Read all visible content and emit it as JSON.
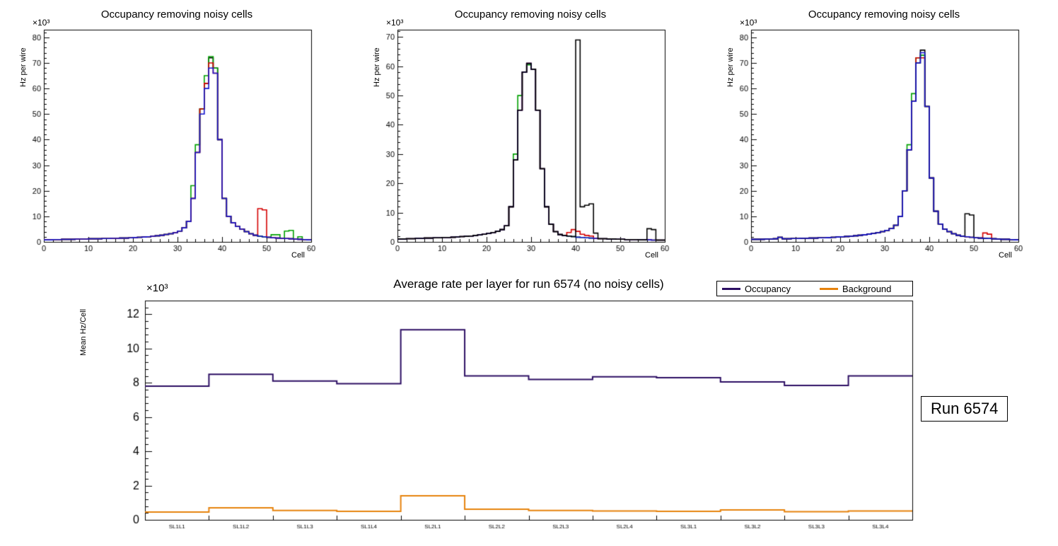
{
  "chart_data": [
    {
      "type": "histogram-overlay",
      "title": "Occupancy removing noisy cells",
      "xlabel": "Cell",
      "ylabel": "Hz per wire",
      "y_exponent": "×10³",
      "xlim": [
        0,
        60
      ],
      "ylim": [
        0,
        83
      ],
      "xtick_major": 10,
      "xtick_minor": 2,
      "ytick_major": 10,
      "ytick_minor": 2,
      "bins": 60,
      "base": [
        0.8,
        0.8,
        0.9,
        0.9,
        1.0,
        1.0,
        1.0,
        1.1,
        1.1,
        1.1,
        1.2,
        1.2,
        1.2,
        1.3,
        1.3,
        1.4,
        1.4,
        1.5,
        1.5,
        1.6,
        1.7,
        1.8,
        1.9,
        2.0,
        2.2,
        2.4,
        2.6,
        2.9,
        3.2,
        3.6,
        4.2,
        5.5,
        8.0,
        17,
        35,
        52,
        62,
        72,
        68,
        40,
        17,
        10,
        7.5,
        6.0,
        5.0,
        4.0,
        3.2,
        2.6,
        2.2,
        2.0,
        1.8,
        1.6,
        1.5,
        1.4,
        1.3,
        1.2,
        1.1,
        1.0,
        0.9,
        0.8
      ],
      "series": [
        {
          "name": "black",
          "color": "#000000",
          "overrides": {}
        },
        {
          "name": "green",
          "color": "#00a000",
          "overrides": {
            "33": 22,
            "34": 38,
            "36": 65,
            "37": 72.5,
            "51": 2.8,
            "52": 2.8,
            "54": 4.2,
            "55": 4.5,
            "57": 2.0
          }
        },
        {
          "name": "red",
          "color": "#d40000",
          "overrides": {
            "37": 70,
            "38": 66,
            "48": 13,
            "49": 12.5
          }
        },
        {
          "name": "blue",
          "color": "#1414cc",
          "overrides": {
            "35": 50,
            "36": 60,
            "37": 68,
            "38": 66
          }
        }
      ]
    },
    {
      "type": "histogram-overlay",
      "title": "Occupancy removing noisy cells",
      "xlabel": "Cell",
      "ylabel": "Hz per wire",
      "y_exponent": "×10³",
      "xlim": [
        0,
        60
      ],
      "ylim": [
        0,
        72.5
      ],
      "xtick_major": 10,
      "xtick_minor": 2,
      "ytick_major": 10,
      "ytick_minor": 2,
      "bins": 60,
      "base": [
        1.0,
        1.0,
        1.1,
        1.1,
        1.2,
        1.2,
        1.3,
        1.3,
        1.4,
        1.4,
        1.5,
        1.5,
        1.6,
        1.7,
        1.8,
        1.9,
        2.0,
        2.2,
        2.4,
        2.6,
        2.9,
        3.2,
        3.6,
        4.2,
        5.5,
        12,
        28,
        45,
        58,
        61,
        59,
        45,
        25,
        12,
        6.0,
        3.5,
        2.5,
        2.2,
        2.0,
        1.8,
        1.6,
        1.5,
        1.4,
        1.3,
        1.2,
        1.1,
        1.1,
        1.0,
        1.0,
        0.9,
        0.9,
        0.8,
        0.8,
        0.8,
        0.7,
        0.7,
        0.7,
        0.6,
        0.6,
        0.6
      ],
      "series": [
        {
          "name": "green",
          "color": "#00a000",
          "overrides": {
            "26": 30,
            "27": 50,
            "29": 60.5
          }
        },
        {
          "name": "red",
          "color": "#d40000",
          "overrides": {
            "38": 3.2,
            "39": 4.2,
            "40": 3.6,
            "41": 2.6,
            "42": 2.2,
            "43": 2.0
          }
        },
        {
          "name": "blue",
          "color": "#1414cc",
          "overrides": {}
        },
        {
          "name": "black",
          "color": "#000000",
          "overrides": {
            "40": 69,
            "41": 12,
            "42": 12.5,
            "43": 13,
            "44": 3.0,
            "56": 4.5,
            "57": 4.2
          }
        }
      ]
    },
    {
      "type": "histogram-overlay",
      "title": "Occupancy removing noisy cells",
      "xlabel": "Cell",
      "ylabel": "Hz per wire",
      "y_exponent": "×10³",
      "xlim": [
        0,
        60
      ],
      "ylim": [
        0,
        83
      ],
      "xtick_major": 10,
      "xtick_minor": 2,
      "ytick_major": 10,
      "ytick_minor": 2,
      "bins": 60,
      "base": [
        1.0,
        1.0,
        1.0,
        1.1,
        1.1,
        1.2,
        1.8,
        1.2,
        1.2,
        1.3,
        1.3,
        1.4,
        1.4,
        1.5,
        1.5,
        1.6,
        1.6,
        1.7,
        1.8,
        1.9,
        2.0,
        2.1,
        2.2,
        2.4,
        2.6,
        2.8,
        3.0,
        3.3,
        3.6,
        4.0,
        4.5,
        5.2,
        6.5,
        10,
        20,
        36,
        55,
        70,
        74,
        53,
        25,
        12,
        7.0,
        5.0,
        4.0,
        3.2,
        2.6,
        2.2,
        2.0,
        1.8,
        1.6,
        1.5,
        1.4,
        1.3,
        1.2,
        1.1,
        1.0,
        1.0,
        0.9,
        0.8
      ],
      "series": [
        {
          "name": "green",
          "color": "#00a000",
          "overrides": {
            "35": 38,
            "36": 58,
            "37": 72,
            "38": 73
          }
        },
        {
          "name": "red",
          "color": "#d40000",
          "overrides": {
            "37": 72,
            "38": 72,
            "52": 3.5,
            "53": 3.0
          }
        },
        {
          "name": "black",
          "color": "#000000",
          "overrides": {
            "38": 75,
            "48": 11,
            "49": 10.5
          }
        },
        {
          "name": "blue",
          "color": "#1414cc",
          "overrides": {
            "39": 53
          }
        }
      ]
    },
    {
      "type": "step",
      "title": "Average rate per layer for run 6574 (no noisy cells)",
      "ylabel": "Mean Hz/Cell",
      "y_exponent": "×10³",
      "ylim": [
        0,
        12.8
      ],
      "ytick_major": 2,
      "ytick_minor": 0.4,
      "categories": [
        "SL1L1",
        "SL1L2",
        "SL1L3",
        "SL1L4",
        "SL2L1",
        "SL2L2",
        "SL2L3",
        "SL2L4",
        "SL3L1",
        "SL3L2",
        "SL3L3",
        "SL3L4"
      ],
      "series": [
        {
          "name": "Occupancy",
          "color": "#2c0e63",
          "values": [
            7.8,
            8.5,
            8.1,
            7.95,
            11.1,
            8.4,
            8.2,
            8.35,
            8.3,
            8.05,
            7.85,
            8.4
          ]
        },
        {
          "name": "Background",
          "color": "#e6820c",
          "values": [
            0.45,
            0.7,
            0.55,
            0.5,
            1.4,
            0.62,
            0.55,
            0.52,
            0.5,
            0.58,
            0.48,
            0.52
          ]
        }
      ],
      "legend_position": "top-right"
    }
  ],
  "bottom": {
    "run_label": "Run 6574"
  }
}
